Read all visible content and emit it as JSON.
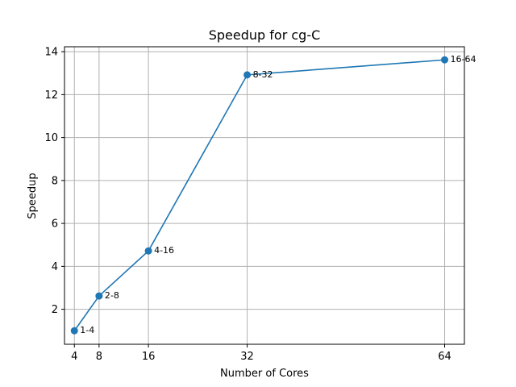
{
  "chart_data": {
    "type": "line",
    "title": "Speedup for cg-C",
    "xlabel": "Number of Cores",
    "ylabel": "Speedup",
    "x": [
      4,
      8,
      16,
      32,
      64
    ],
    "xticks": [
      "4",
      "8",
      "16",
      "32",
      "64"
    ],
    "yticks": [
      2,
      4,
      6,
      8,
      10,
      12,
      14
    ],
    "xlim": [
      2.4,
      67.2
    ],
    "ylim": [
      0.37,
      14.23
    ],
    "grid": true,
    "series": [
      {
        "color": "#1f77b4",
        "values": [
          1.0,
          2.62,
          4.72,
          12.92,
          13.62
        ],
        "labels": [
          "1-4",
          "2-8",
          "4-16",
          "8-32",
          "16-64"
        ]
      }
    ]
  }
}
